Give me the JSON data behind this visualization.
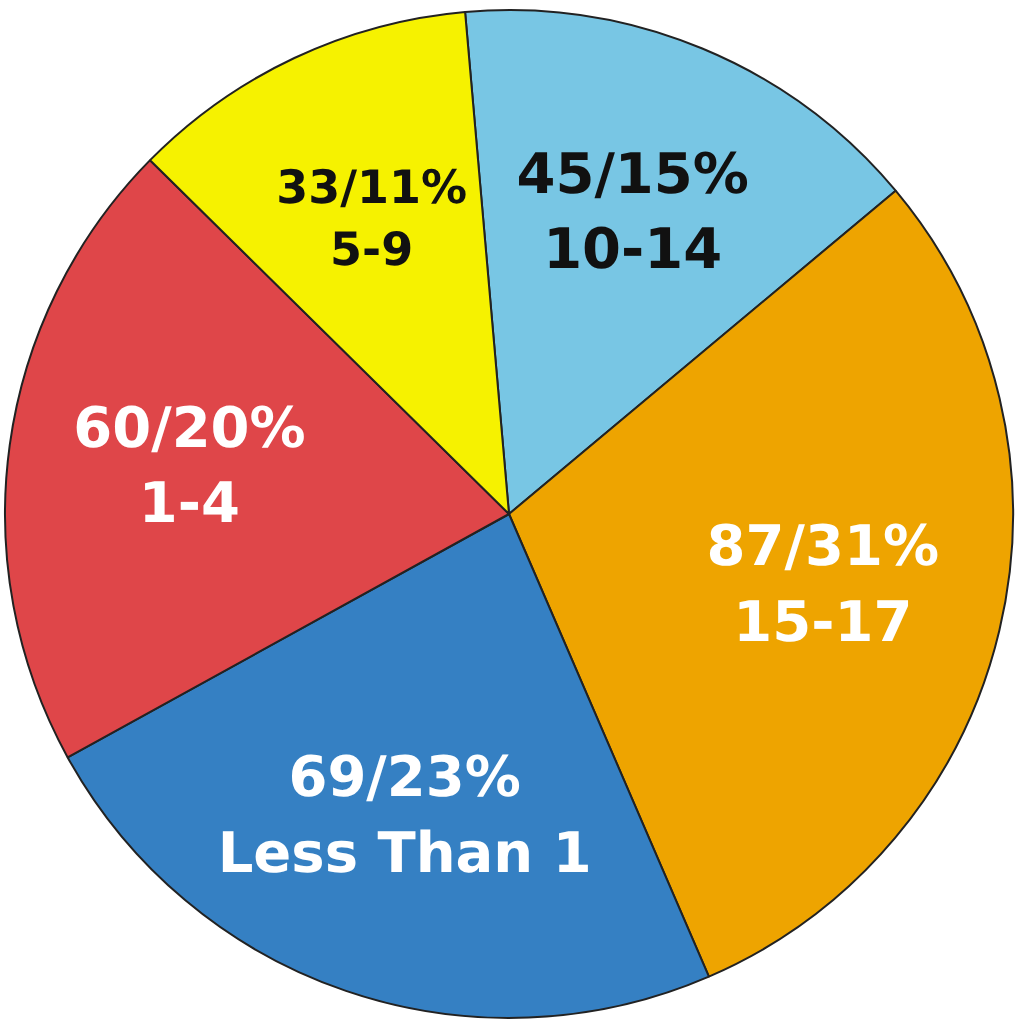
{
  "chart_data": {
    "type": "pie",
    "categories": [
      "10-14",
      "15-17",
      "Less Than 1",
      "1-4",
      "5-9"
    ],
    "values": [
      45,
      87,
      69,
      60,
      33
    ],
    "colors": [
      "#78c6e4",
      "#eea400",
      "#3580c3",
      "#df4649",
      "#f6f200"
    ],
    "value_labels": [
      "45/15%",
      "87/31%",
      "69/23%",
      "60/20%",
      "33/11%"
    ]
  }
}
